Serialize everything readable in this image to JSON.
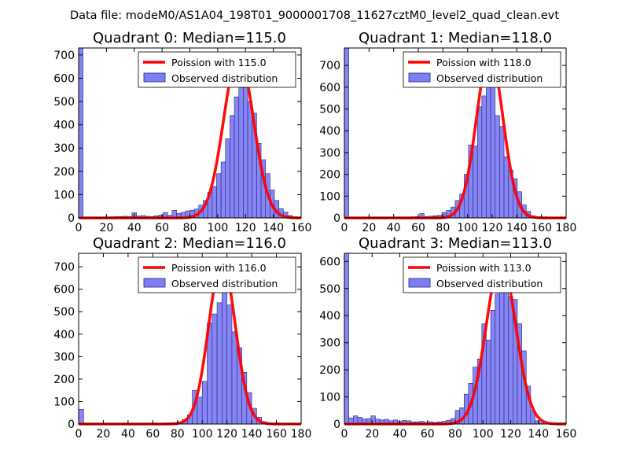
{
  "figure_title": "Data file: modeM0/AS1A04_198T01_9000001708_11627cztM0_level2_quad_clean.evt",
  "colors": {
    "observed_fill": "#7f7ff5",
    "observed_edge": "#23237a",
    "poisson_line": "#ff0000",
    "background": "#ffffff"
  },
  "chart_data": [
    {
      "type": "bar",
      "title": "Quadrant 0: Median=115.0",
      "median": 115.0,
      "xlim": [
        0,
        160
      ],
      "ylim": [
        0,
        730
      ],
      "xticks": [
        "0",
        "20",
        "40",
        "60",
        "80",
        "100",
        "120",
        "140",
        "160"
      ],
      "yticks": [
        "0",
        "100",
        "200",
        "300",
        "400",
        "500",
        "600",
        "700"
      ],
      "legend": {
        "position": "top-right",
        "entries": [
          "Poission with 115.0",
          "Observed distribution"
        ]
      },
      "bin_width": 3.2,
      "bins": [
        [
          0,
          730
        ],
        [
          3.2,
          0
        ],
        [
          6.4,
          3
        ],
        [
          9.6,
          3
        ],
        [
          12.8,
          3
        ],
        [
          16,
          4
        ],
        [
          19.2,
          4
        ],
        [
          22.4,
          5
        ],
        [
          25.6,
          6
        ],
        [
          28.8,
          6
        ],
        [
          32,
          7
        ],
        [
          35.2,
          6
        ],
        [
          38.4,
          22
        ],
        [
          41.6,
          8
        ],
        [
          44.8,
          10
        ],
        [
          48,
          7
        ],
        [
          51.2,
          6
        ],
        [
          54.4,
          9
        ],
        [
          57.6,
          12
        ],
        [
          60.8,
          23
        ],
        [
          64,
          11
        ],
        [
          67.2,
          33
        ],
        [
          70.4,
          19
        ],
        [
          73.6,
          24
        ],
        [
          76.8,
          30
        ],
        [
          80,
          33
        ],
        [
          83.2,
          38
        ],
        [
          86.4,
          55
        ],
        [
          89.6,
          75
        ],
        [
          92.8,
          110
        ],
        [
          96,
          135
        ],
        [
          99.2,
          190
        ],
        [
          102.4,
          240
        ],
        [
          105.6,
          340
        ],
        [
          108.8,
          440
        ],
        [
          112,
          520
        ],
        [
          115.2,
          690
        ],
        [
          118.4,
          560
        ],
        [
          121.6,
          500
        ],
        [
          124.8,
          450
        ],
        [
          128,
          320
        ],
        [
          131.2,
          250
        ],
        [
          134.4,
          190
        ],
        [
          137.6,
          120
        ],
        [
          140.8,
          75
        ],
        [
          144,
          40
        ],
        [
          147.2,
          25
        ],
        [
          150.4,
          10
        ],
        [
          153.6,
          5
        ]
      ],
      "poisson": {
        "mean": 115.0,
        "peak": 700,
        "sigma": 10.7
      }
    },
    {
      "type": "bar",
      "title": "Quadrant 1: Median=118.0",
      "median": 118.0,
      "xlim": [
        0,
        180
      ],
      "ylim": [
        0,
        780
      ],
      "xticks": [
        "0",
        "20",
        "40",
        "60",
        "80",
        "100",
        "120",
        "140",
        "160",
        "180"
      ],
      "yticks": [
        "0",
        "100",
        "200",
        "300",
        "400",
        "500",
        "600",
        "700"
      ],
      "legend": {
        "position": "top-right",
        "entries": [
          "Poission with 118.0",
          "Observed distribution"
        ]
      },
      "bin_width": 3.6,
      "bins": [
        [
          0,
          780
        ],
        [
          3.6,
          1
        ],
        [
          7.2,
          2
        ],
        [
          10.8,
          2
        ],
        [
          14.4,
          2
        ],
        [
          18,
          2
        ],
        [
          21.6,
          3
        ],
        [
          25.2,
          3
        ],
        [
          28.8,
          3
        ],
        [
          32.4,
          3
        ],
        [
          36,
          4
        ],
        [
          39.6,
          3
        ],
        [
          43.2,
          4
        ],
        [
          46.8,
          3
        ],
        [
          50.4,
          3
        ],
        [
          54,
          5
        ],
        [
          57.6,
          6
        ],
        [
          61.2,
          20
        ],
        [
          64.8,
          6
        ],
        [
          68.4,
          8
        ],
        [
          72,
          10
        ],
        [
          75.6,
          12
        ],
        [
          79.2,
          25
        ],
        [
          82.8,
          35
        ],
        [
          86.4,
          50
        ],
        [
          90,
          80
        ],
        [
          93.6,
          110
        ],
        [
          97.2,
          200
        ],
        [
          100.8,
          335
        ],
        [
          104.4,
          330
        ],
        [
          108,
          510
        ],
        [
          111.6,
          560
        ],
        [
          115.2,
          750
        ],
        [
          118.8,
          610
        ],
        [
          122.4,
          470
        ],
        [
          126,
          420
        ],
        [
          129.6,
          280
        ],
        [
          133.2,
          220
        ],
        [
          136.8,
          180
        ],
        [
          140.4,
          120
        ],
        [
          144,
          60
        ],
        [
          147.6,
          30
        ],
        [
          151.2,
          10
        ],
        [
          154.8,
          5
        ]
      ],
      "poisson": {
        "mean": 118.0,
        "peak": 750,
        "sigma": 10.86
      }
    },
    {
      "type": "bar",
      "title": "Quadrant 2: Median=116.0",
      "median": 116.0,
      "xlim": [
        0,
        180
      ],
      "ylim": [
        0,
        760
      ],
      "xticks": [
        "0",
        "20",
        "40",
        "60",
        "80",
        "100",
        "120",
        "140",
        "160",
        "180"
      ],
      "yticks": [
        "0",
        "100",
        "200",
        "300",
        "400",
        "500",
        "600",
        "700"
      ],
      "legend": {
        "position": "top-right",
        "entries": [
          "Poission with 116.0",
          "Observed distribution"
        ]
      },
      "bin_width": 4.0,
      "bins": [
        [
          0,
          65
        ],
        [
          4,
          0
        ],
        [
          8,
          1
        ],
        [
          12,
          1
        ],
        [
          16,
          1
        ],
        [
          20,
          1
        ],
        [
          24,
          1
        ],
        [
          28,
          1
        ],
        [
          32,
          1
        ],
        [
          36,
          1
        ],
        [
          40,
          1
        ],
        [
          44,
          1
        ],
        [
          48,
          1
        ],
        [
          52,
          2
        ],
        [
          56,
          2
        ],
        [
          60,
          2
        ],
        [
          64,
          2
        ],
        [
          68,
          3
        ],
        [
          72,
          3
        ],
        [
          76,
          5
        ],
        [
          80,
          10
        ],
        [
          84,
          20
        ],
        [
          88,
          40
        ],
        [
          92,
          150
        ],
        [
          96,
          120
        ],
        [
          100,
          190
        ],
        [
          104,
          450
        ],
        [
          108,
          490
        ],
        [
          112,
          540
        ],
        [
          116,
          600
        ],
        [
          120,
          530
        ],
        [
          124,
          410
        ],
        [
          128,
          340
        ],
        [
          132,
          230
        ],
        [
          136,
          140
        ],
        [
          140,
          70
        ],
        [
          144,
          30
        ],
        [
          148,
          10
        ],
        [
          152,
          5
        ]
      ],
      "poisson": {
        "mean": 116.0,
        "peak": 725,
        "sigma": 10.77
      }
    },
    {
      "type": "bar",
      "title": "Quadrant 3: Median=113.0",
      "median": 113.0,
      "xlim": [
        0,
        160
      ],
      "ylim": [
        0,
        630
      ],
      "xticks": [
        "0",
        "20",
        "40",
        "60",
        "80",
        "100",
        "120",
        "140",
        "160"
      ],
      "yticks": [
        "0",
        "100",
        "200",
        "300",
        "400",
        "500",
        "600"
      ],
      "legend": {
        "position": "top-right",
        "entries": [
          "Poission with 113.0",
          "Observed distribution"
        ]
      },
      "bin_width": 3.2,
      "bins": [
        [
          0,
          630
        ],
        [
          3.2,
          22
        ],
        [
          6.4,
          30
        ],
        [
          9.6,
          25
        ],
        [
          12.8,
          18
        ],
        [
          16,
          20
        ],
        [
          19.2,
          30
        ],
        [
          22.4,
          18
        ],
        [
          25.6,
          15
        ],
        [
          28.8,
          17
        ],
        [
          32,
          12
        ],
        [
          35.2,
          15
        ],
        [
          38.4,
          10
        ],
        [
          41.6,
          13
        ],
        [
          44.8,
          12
        ],
        [
          48,
          8
        ],
        [
          51.2,
          8
        ],
        [
          54.4,
          10
        ],
        [
          57.6,
          6
        ],
        [
          60.8,
          8
        ],
        [
          64,
          6
        ],
        [
          67.2,
          8
        ],
        [
          70.4,
          10
        ],
        [
          73.6,
          14
        ],
        [
          76.8,
          20
        ],
        [
          80,
          50
        ],
        [
          83.2,
          60
        ],
        [
          86.4,
          110
        ],
        [
          89.6,
          150
        ],
        [
          92.8,
          210
        ],
        [
          96,
          240
        ],
        [
          99.2,
          370
        ],
        [
          102.4,
          310
        ],
        [
          105.6,
          420
        ],
        [
          108.8,
          480
        ],
        [
          112,
          570
        ],
        [
          115.2,
          570
        ],
        [
          118.4,
          470
        ],
        [
          121.6,
          460
        ],
        [
          124.8,
          370
        ],
        [
          128,
          270
        ],
        [
          131.2,
          140
        ],
        [
          134.4,
          50
        ],
        [
          137.6,
          12
        ],
        [
          140.8,
          5
        ]
      ],
      "poisson": {
        "mean": 113.0,
        "peak": 600,
        "sigma": 10.63
      }
    }
  ]
}
